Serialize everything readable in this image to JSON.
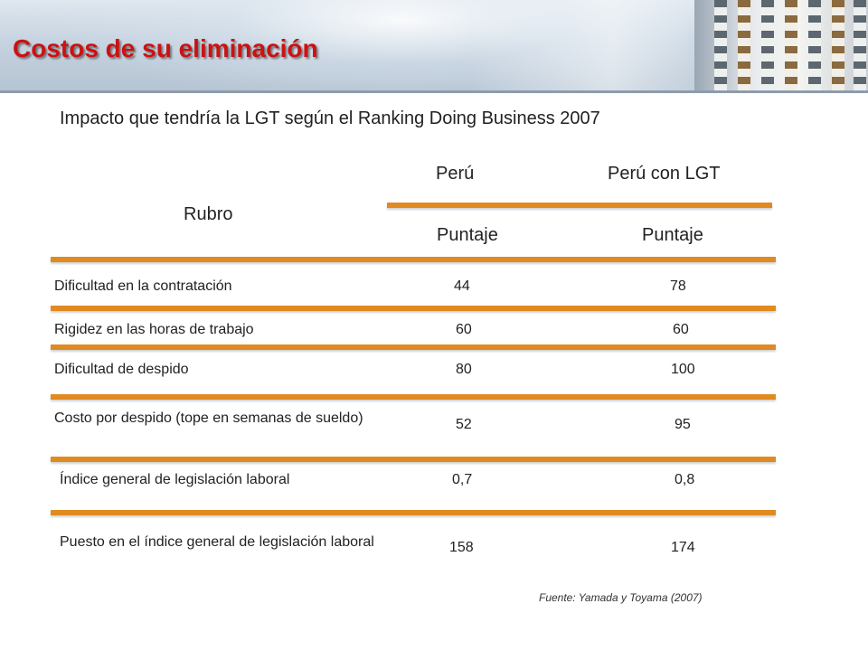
{
  "header": {
    "title": "Costos de su eliminación"
  },
  "subtitle": "Impacto que tendría la LGT según el Ranking Doing Business 2007",
  "columns": {
    "rubro": "Rubro",
    "peru": "Perú",
    "peru_lgt": "Perú con LGT",
    "puntaje_1": "Puntaje",
    "puntaje_2": "Puntaje"
  },
  "rows": [
    {
      "rubro": "Dificultad en la contratación",
      "peru": "44",
      "peru_lgt": "78"
    },
    {
      "rubro": "Rigidez en las horas de trabajo",
      "peru": "60",
      "peru_lgt": "60"
    },
    {
      "rubro": "Dificultad de despido",
      "peru": "80",
      "peru_lgt": "100"
    },
    {
      "rubro": "Costo por despido (tope en semanas de sueldo)",
      "peru": "52",
      "peru_lgt": "95"
    },
    {
      "rubro": "Índice general de legislación laboral",
      "peru": "0,7",
      "peru_lgt": "0,8"
    },
    {
      "rubro": "Puesto en el índice general de legislación laboral",
      "peru": "158",
      "peru_lgt": "174"
    }
  ],
  "source": "Fuente: Yamada  y Toyama (2007)",
  "colors": {
    "title": "#cc1111",
    "rule": "#e08a22"
  }
}
